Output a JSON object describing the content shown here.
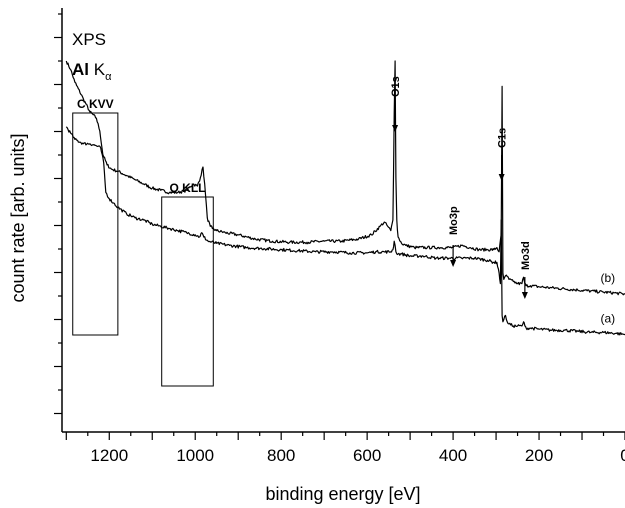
{
  "chart_data": {
    "type": "line",
    "xlabel": "binding energy [eV]",
    "ylabel": "count rate [arb. units]",
    "xlim": [
      1310,
      0
    ],
    "x_reversed": true,
    "y_tick_labels_shown": false,
    "x_ticks": [
      1200,
      1000,
      800,
      600,
      400,
      200,
      0
    ],
    "x_tick_labels": [
      "1200",
      "1000",
      "800",
      "600",
      "400",
      "200",
      "0"
    ],
    "source": {
      "line1": "XPS",
      "line2_bold": "Al",
      "line2_rest": " K",
      "line2_sub": "α"
    },
    "series": [
      {
        "name": "(b)",
        "x": [
          1300,
          1290,
          1280,
          1260,
          1245,
          1230,
          1222,
          1215,
          1205,
          1195,
          1180,
          1160,
          1140,
          1120,
          1100,
          1080,
          1060,
          1040,
          1020,
          1005,
          995,
          988,
          982,
          978,
          972,
          965,
          960,
          950,
          930,
          900,
          860,
          820,
          780,
          740,
          700,
          660,
          620,
          590,
          570,
          560,
          552,
          545,
          540,
          537,
          535,
          533,
          531,
          528,
          520,
          510,
          490,
          460,
          430,
          400,
          380,
          360,
          340,
          320,
          305,
          298,
          293,
          288,
          286,
          284,
          282,
          280,
          276,
          270,
          260,
          250,
          240,
          236,
          233,
          230,
          220,
          200,
          170,
          140,
          110,
          80,
          50,
          20,
          0
        ],
        "y": [
          1.3,
          1.26,
          1.2,
          1.12,
          1.06,
          1.03,
          0.97,
          0.86,
          0.81,
          0.79,
          0.78,
          0.76,
          0.74,
          0.72,
          0.7,
          0.69,
          0.68,
          0.68,
          0.69,
          0.72,
          0.71,
          0.75,
          0.8,
          0.72,
          0.56,
          0.52,
          0.51,
          0.5,
          0.49,
          0.48,
          0.46,
          0.45,
          0.445,
          0.445,
          0.45,
          0.45,
          0.46,
          0.48,
          0.52,
          0.54,
          0.52,
          0.5,
          0.55,
          1.05,
          1.3,
          0.75,
          0.55,
          0.47,
          0.44,
          0.43,
          0.42,
          0.42,
          0.42,
          0.42,
          0.43,
          0.42,
          0.41,
          0.41,
          0.41,
          0.42,
          0.4,
          0.48,
          1.18,
          0.3,
          0.27,
          0.28,
          0.29,
          0.27,
          0.26,
          0.25,
          0.25,
          0.28,
          0.25,
          0.24,
          0.24,
          0.235,
          0.23,
          0.225,
          0.22,
          0.215,
          0.21,
          0.205,
          0.2
        ]
      },
      {
        "name": "(a)",
        "x": [
          1300,
          1290,
          1280,
          1260,
          1245,
          1230,
          1220,
          1213,
          1208,
          1200,
          1190,
          1180,
          1160,
          1140,
          1120,
          1100,
          1080,
          1060,
          1040,
          1020,
          1000,
          990,
          985,
          980,
          970,
          950,
          920,
          880,
          840,
          800,
          760,
          720,
          680,
          640,
          600,
          580,
          560,
          545,
          540,
          537,
          535,
          533,
          531,
          528,
          520,
          500,
          470,
          440,
          410,
          380,
          350,
          320,
          305,
          298,
          293,
          290,
          288,
          286,
          284,
          282,
          278,
          274,
          270,
          260,
          250,
          240,
          236,
          233,
          230,
          220,
          200,
          170,
          140,
          110,
          80,
          50,
          20,
          0
        ],
        "y": [
          0.99,
          0.96,
          0.93,
          0.91,
          0.91,
          0.9,
          0.89,
          0.82,
          0.68,
          0.65,
          0.63,
          0.61,
          0.58,
          0.56,
          0.55,
          0.53,
          0.52,
          0.51,
          0.5,
          0.49,
          0.48,
          0.47,
          0.49,
          0.47,
          0.45,
          0.44,
          0.43,
          0.42,
          0.415,
          0.41,
          0.405,
          0.4,
          0.4,
          0.395,
          0.395,
          0.4,
          0.4,
          0.4,
          0.41,
          0.45,
          0.43,
          0.4,
          0.39,
          0.39,
          0.39,
          0.38,
          0.38,
          0.37,
          0.37,
          0.37,
          0.37,
          0.36,
          0.35,
          0.35,
          0.3,
          0.25,
          0.55,
          0.1,
          0.07,
          0.08,
          0.1,
          0.07,
          0.06,
          0.05,
          0.05,
          0.05,
          0.07,
          0.05,
          0.04,
          0.04,
          0.035,
          0.03,
          0.03,
          0.025,
          0.02,
          0.02,
          0.015,
          0.01
        ]
      }
    ],
    "annotations": [
      {
        "text": "O1s",
        "x": 535,
        "arrow": true
      },
      {
        "text": "C1s",
        "x": 287,
        "arrow": true
      },
      {
        "text": "Mo3p",
        "x": 400,
        "arrow": true
      },
      {
        "text": "Mo3d",
        "x": 233,
        "arrow": true
      },
      {
        "text": "(b)",
        "x": 40,
        "series": "(b)"
      },
      {
        "text": "(a)",
        "x": 40,
        "series": "(a)"
      }
    ],
    "regions": [
      {
        "label": "C KVV",
        "x_range": [
          1285,
          1180
        ]
      },
      {
        "label": "O KLL",
        "x_range": [
          1078,
          958
        ]
      }
    ],
    "grid": false,
    "legend": "none"
  }
}
